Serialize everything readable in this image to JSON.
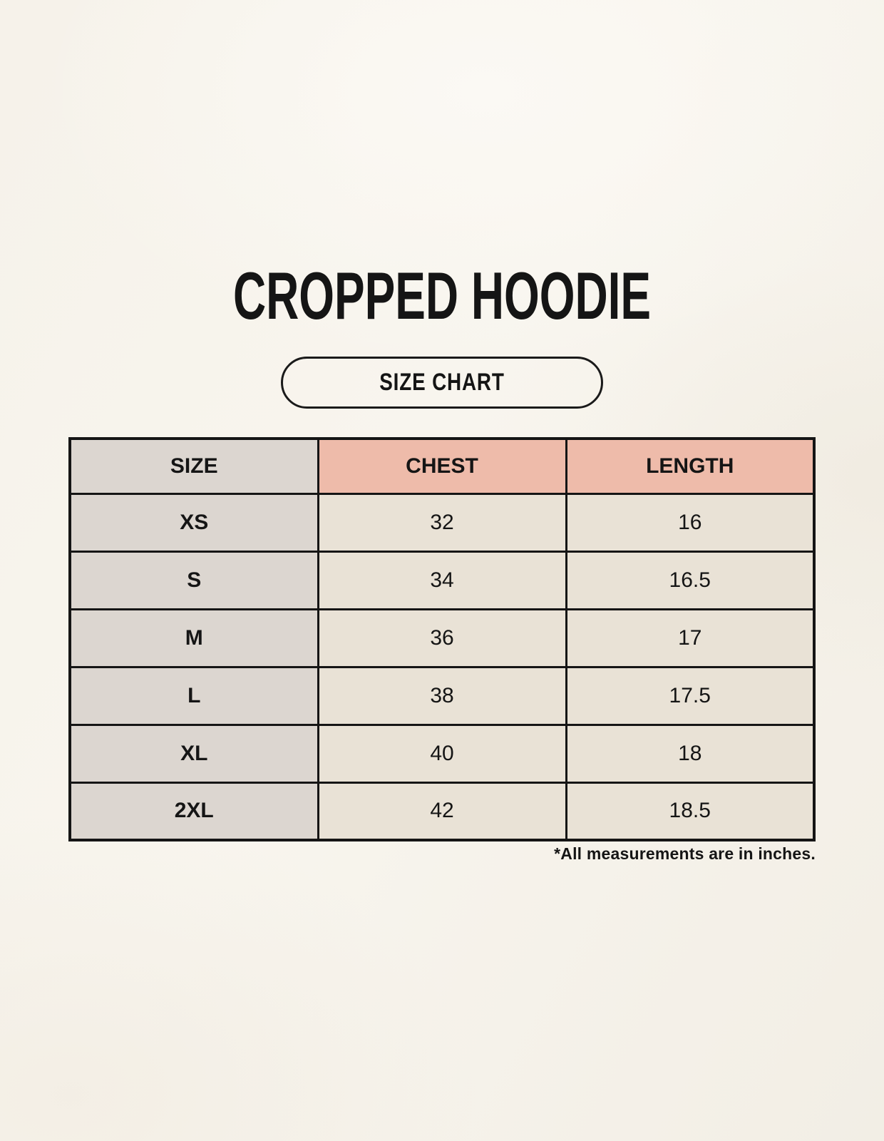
{
  "page": {
    "title": "CROPPED HOODIE",
    "size_chart_button_label": "SIZE CHART",
    "footnote": "*All measurements are in inches."
  },
  "chart_data": {
    "type": "table",
    "title": "CROPPED HOODIE",
    "columns": [
      "SIZE",
      "CHEST",
      "LENGTH"
    ],
    "rows": [
      [
        "XS",
        "32",
        "16"
      ],
      [
        "S",
        "34",
        "16.5"
      ],
      [
        "M",
        "36",
        "17"
      ],
      [
        "L",
        "38",
        "17.5"
      ],
      [
        "XL",
        "40",
        "18"
      ],
      [
        "2XL",
        "42",
        "18.5"
      ]
    ],
    "units_note": "*All measurements are in inches."
  },
  "colors": {
    "page_background": "#f6f2ea",
    "size_column_bg": "#dcd6d0",
    "measure_header_bg": "#eebbaa",
    "value_cell_bg": "#e9e2d6",
    "table_border": "#151515",
    "text": "#151515"
  }
}
